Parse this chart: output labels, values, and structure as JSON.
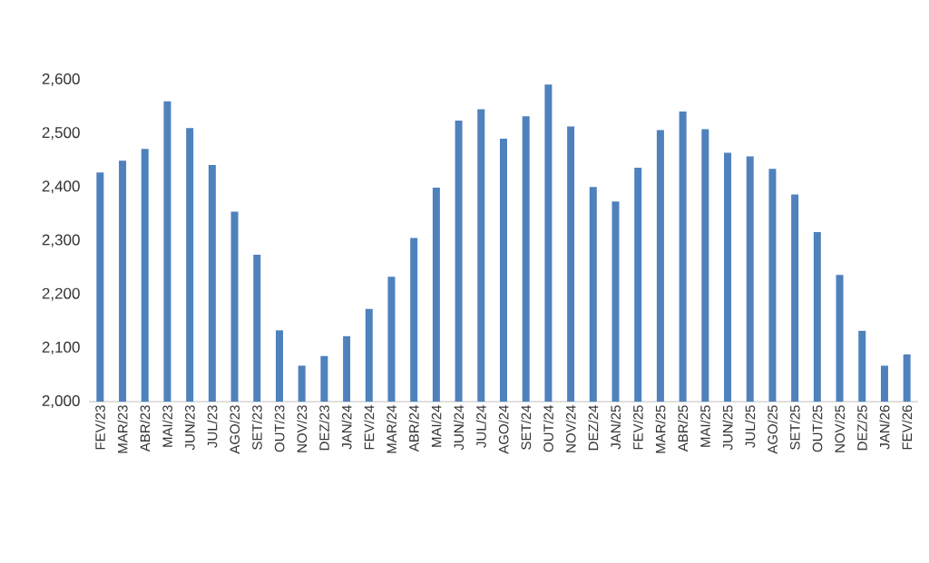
{
  "chart_data": {
    "type": "bar",
    "categories": [
      "FEV/23",
      "MAR/23",
      "ABR/23",
      "MAI/23",
      "JUN/23",
      "JUL/23",
      "AGO/23",
      "SET/23",
      "OUT/23",
      "NOV/23",
      "DEZ/23",
      "JAN/24",
      "FEV/24",
      "MAR/24",
      "ABR/24",
      "MAI/24",
      "JUN/24",
      "JUL/24",
      "AGO/24",
      "SET/24",
      "OUT/24",
      "NOV/24",
      "DEZ/24",
      "JAN/25",
      "FEV/25",
      "MAR/25",
      "ABR/25",
      "MAI/25",
      "JUN/25",
      "JUL/25",
      "AGO/25",
      "SET/25",
      "OUT/25",
      "NOV/25",
      "DEZ/25",
      "JAN/26",
      "FEV/26"
    ],
    "values": [
      2427,
      2449,
      2471,
      2560,
      2510,
      2441,
      2354,
      2274,
      2133,
      2067,
      2085,
      2122,
      2173,
      2233,
      2305,
      2399,
      2524,
      2545,
      2490,
      2532,
      2591,
      2513,
      2400,
      2373,
      2436,
      2506,
      2541,
      2508,
      2464,
      2457,
      2434,
      2386,
      2316,
      2236,
      2132,
      2067,
      2088
    ],
    "color": "#4f81bd",
    "ylim": [
      2000,
      2600
    ],
    "yticks": [
      {
        "value": 2000,
        "label": "2,000"
      },
      {
        "value": 2100,
        "label": "2,100"
      },
      {
        "value": 2200,
        "label": "2,200"
      },
      {
        "value": 2300,
        "label": "2,300"
      },
      {
        "value": 2400,
        "label": "2,400"
      },
      {
        "value": 2500,
        "label": "2,500"
      },
      {
        "value": 2600,
        "label": "2,600"
      }
    ]
  }
}
